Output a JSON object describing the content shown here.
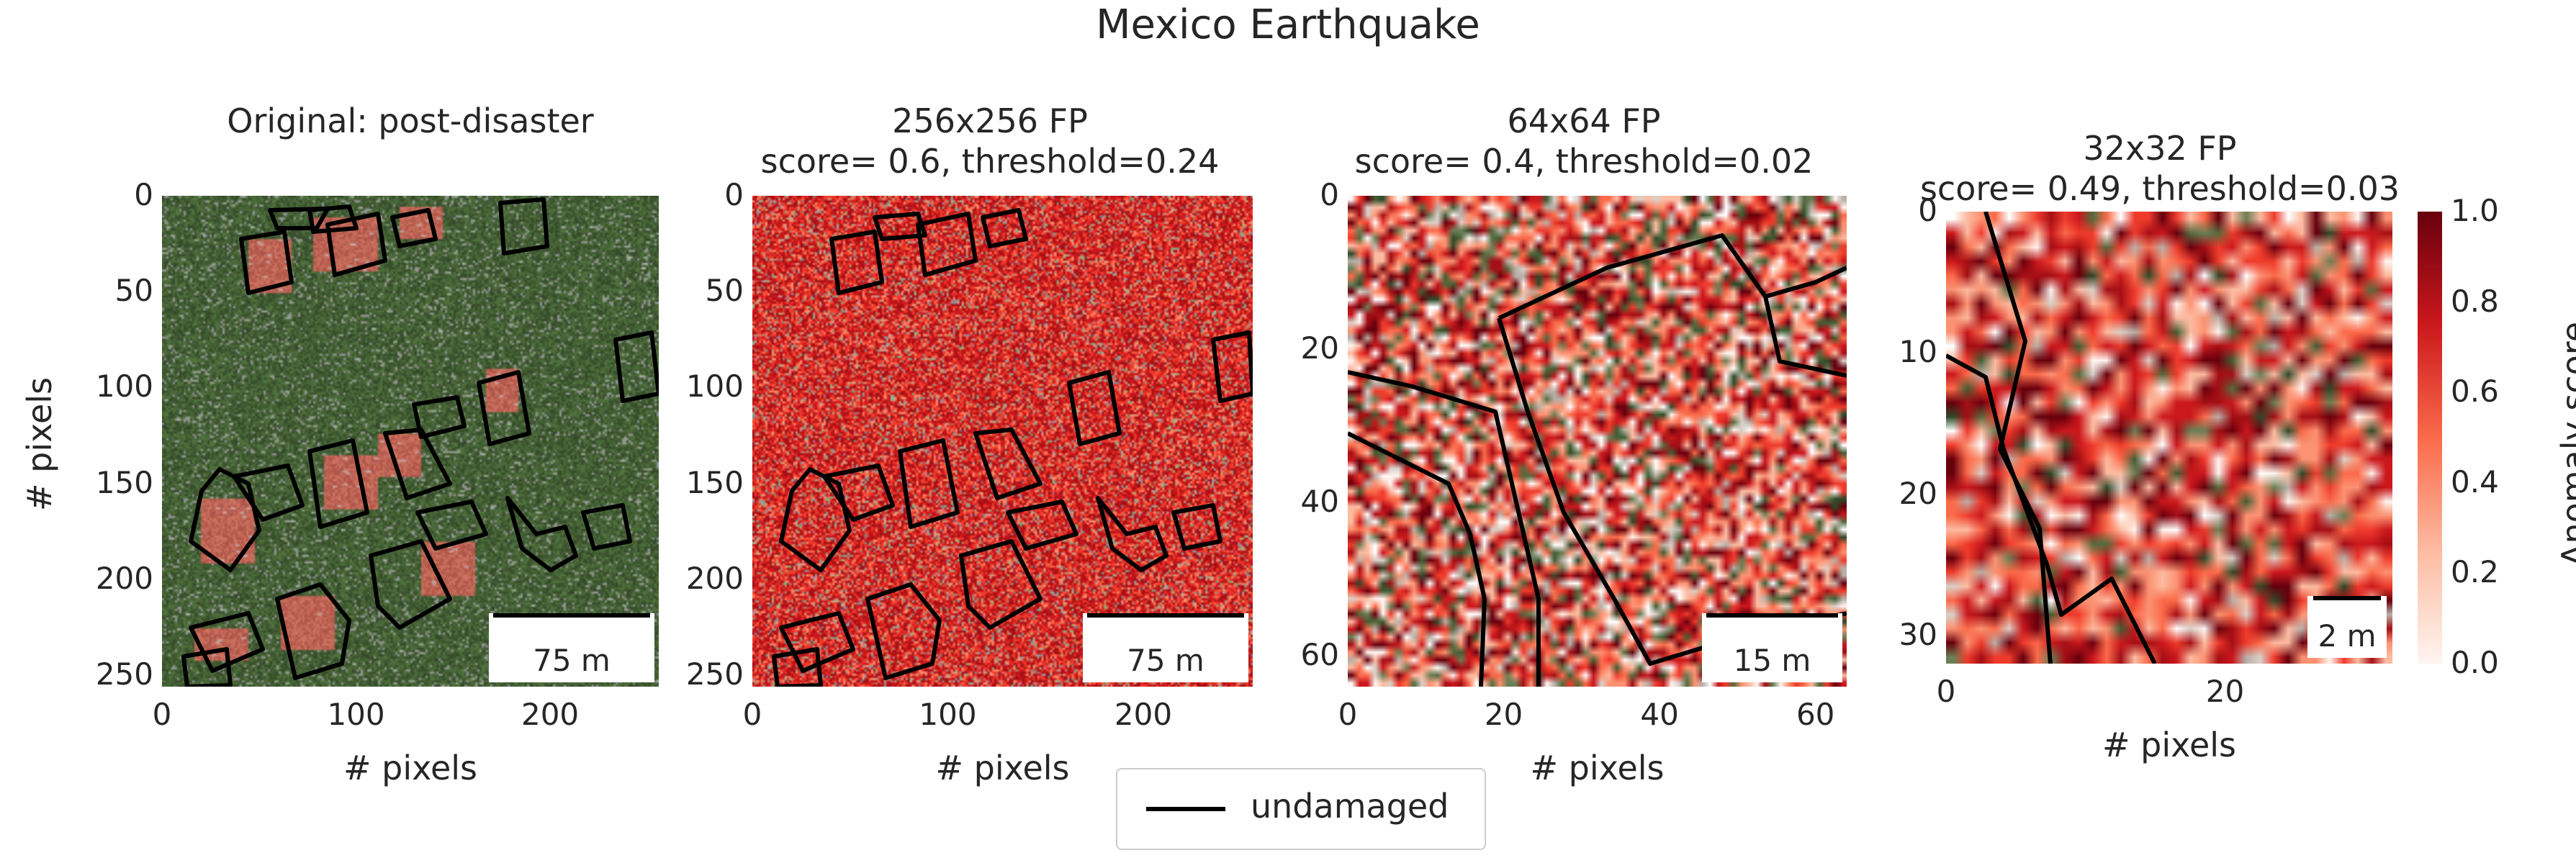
{
  "figure": {
    "title": "Mexico Earthquake",
    "legend": {
      "label": "undamaged"
    },
    "colorbar": {
      "label": "Anomaly score",
      "ticks": [
        "1.0",
        "0.8",
        "0.6",
        "0.4",
        "0.2",
        "0.0"
      ],
      "colormap": [
        "#fff5f0",
        "#fcbba1",
        "#fb6a4a",
        "#cb181d",
        "#67000d"
      ]
    },
    "panels": [
      {
        "title_line1": "Original: post-disaster",
        "title_line2": "",
        "ylabel": "# pixels",
        "xlabel": "# pixels",
        "yticks": [
          "0",
          "50",
          "100",
          "150",
          "200",
          "250"
        ],
        "xticks": [
          "0",
          "100",
          "200"
        ],
        "scale_bar": "75 m",
        "image": "satellite-rgb"
      },
      {
        "title_line1": "256x256 FP",
        "title_line2": "score= 0.6, threshold=0.24",
        "ylabel": "",
        "xlabel": "# pixels",
        "yticks": [
          "0",
          "50",
          "100",
          "150",
          "200",
          "250"
        ],
        "xticks": [
          "0",
          "100",
          "200"
        ],
        "scale_bar": "75 m",
        "image": "anomaly-overlay-256"
      },
      {
        "title_line1": "64x64 FP",
        "title_line2": "score= 0.4, threshold=0.02",
        "ylabel": "",
        "xlabel": "# pixels",
        "yticks": [
          "0",
          "20",
          "40",
          "60"
        ],
        "xticks": [
          "0",
          "20",
          "40",
          "60"
        ],
        "scale_bar": "15 m",
        "image": "anomaly-overlay-64"
      },
      {
        "title_line1": "32x32 FP",
        "title_line2": "score= 0.49, threshold=0.03",
        "ylabel": "",
        "xlabel": "# pixels",
        "yticks": [
          "0",
          "10",
          "20",
          "30"
        ],
        "xticks": [
          "0",
          "20"
        ],
        "scale_bar": "2 m",
        "image": "anomaly-overlay-32"
      }
    ]
  }
}
